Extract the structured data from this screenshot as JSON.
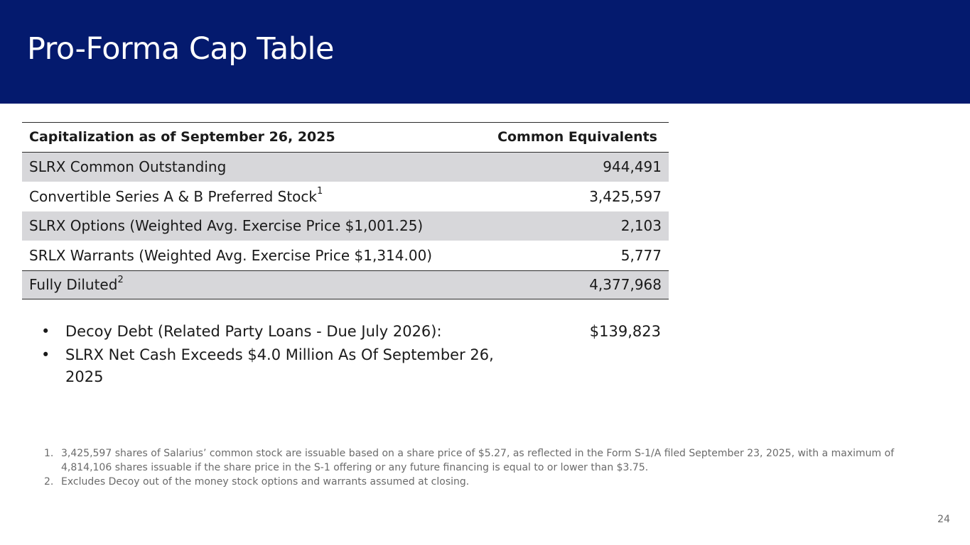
{
  "header": {
    "title": "Pro-Forma Cap Table"
  },
  "table": {
    "col_label": "Capitalization as of September 26, 2025",
    "col_value": "Common Equivalents",
    "rows": [
      {
        "label": "SLRX Common Outstanding",
        "sup": "",
        "value": "944,491"
      },
      {
        "label": "Convertible Series A & B Preferred Stock",
        "sup": "1",
        "value": "3,425,597"
      },
      {
        "label": "SLRX Options (Weighted Avg. Exercise Price $1,001.25)",
        "sup": "",
        "value": "2,103"
      },
      {
        "label": "SRLX Warrants (Weighted Avg. Exercise Price $1,314.00)",
        "sup": "",
        "value": "5,777"
      }
    ],
    "total": {
      "label": "Fully Diluted",
      "sup": "2",
      "value": "4,377,968"
    }
  },
  "bullets": [
    {
      "text": "Decoy Debt (Related Party Loans  - Due July 2026):",
      "value": "$139,823"
    },
    {
      "text": "SLRX Net Cash Exceeds $4.0 Million As Of September 26, 2025",
      "value": ""
    }
  ],
  "bullet_glyph": "•",
  "footnotes": [
    {
      "num": "1.",
      "text": "3,425,597 shares of Salarius’ common stock are issuable based on a share price of $5.27, as reflected in the Form S-1/A filed September 23, 2025, with a maximum of 4,814,106 shares issuable if the share price in the S-1 offering or any future financing is equal to or lower than $3.75."
    },
    {
      "num": "2.",
      "text": "Excludes Decoy out of the money stock options and warrants assumed at closing."
    }
  ],
  "page_number": "24",
  "colors": {
    "header_bg": "#041a6e",
    "row_shade": "#d7d7da"
  }
}
